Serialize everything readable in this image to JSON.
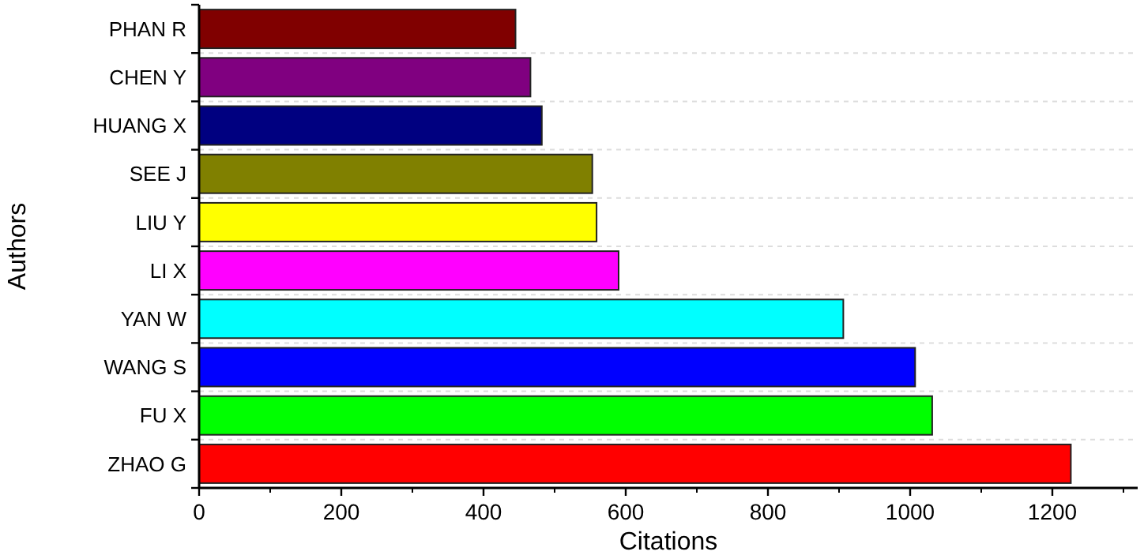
{
  "chart_data": {
    "type": "bar",
    "orientation": "horizontal",
    "xlabel": "Citations",
    "ylabel": "Authors",
    "categories": [
      "PHAN R",
      "CHEN Y",
      "HUANG X",
      "SEE J",
      "LIU Y",
      "LI X",
      "YAN W",
      "WANG S",
      "FU X",
      "ZHAO G"
    ],
    "values": [
      445,
      466,
      482,
      553,
      559,
      590,
      906,
      1007,
      1031,
      1226
    ],
    "colors": [
      "#800000",
      "#800080",
      "#000080",
      "#808000",
      "#ffff00",
      "#ff00ff",
      "#00ffff",
      "#0000ff",
      "#00ff00",
      "#ff0000"
    ],
    "xlim": [
      0,
      1320
    ],
    "xticks": [
      0,
      200,
      400,
      600,
      800,
      1000,
      1200
    ],
    "grid": "y"
  }
}
